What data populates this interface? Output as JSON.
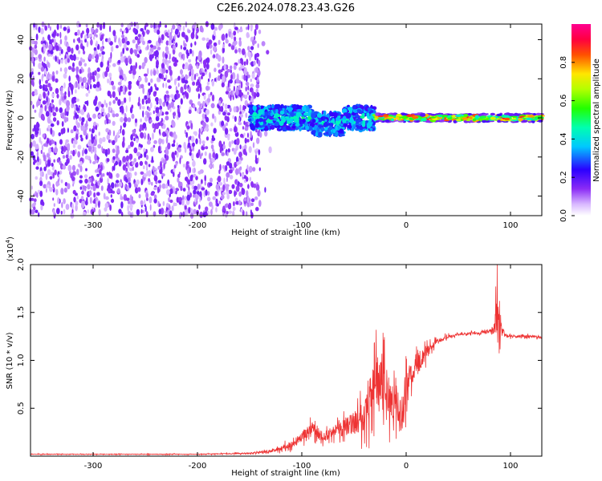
{
  "figure_title": "C2E6.2024.078.23.43.G26",
  "colors": {
    "snr_line": "#ee3333",
    "axis": "#000000"
  },
  "chart_data": [
    {
      "type": "heatmap",
      "title": "C2E6.2024.078.23.43.G26",
      "xlabel": "Height of straight line (km)",
      "ylabel": "Frequency (Hz)",
      "xlim": [
        -360,
        130
      ],
      "ylim": [
        -50,
        48
      ],
      "x_ticks": [
        -300,
        -200,
        -100,
        0,
        100
      ],
      "x_tick_labels": [
        "-300",
        "-200",
        "-100",
        "0",
        "100"
      ],
      "y_ticks": [
        -40,
        -20,
        0,
        20,
        40
      ],
      "y_tick_labels": [
        "-40",
        "-20",
        "0",
        "20",
        "40"
      ],
      "colorbar": {
        "label": "Normalized spectral amplitude",
        "range": [
          0,
          1
        ],
        "ticks": [
          0.0,
          0.2,
          0.4,
          0.6,
          0.8
        ],
        "tick_labels": [
          "0.0",
          "0.2",
          "0.4",
          "0.6",
          "0.8"
        ],
        "colormap": "rainbow (white-lavender-purple-blue-cyan-green-yellow-red-magenta)"
      },
      "regions": [
        {
          "description": "broadband noise",
          "x_range": [
            -360,
            -140
          ],
          "freq_range": [
            -50,
            48
          ],
          "amplitude": 0.15
        },
        {
          "description": "transition band",
          "x_range": [
            -150,
            -30
          ],
          "freq_center": 0,
          "freq_halfwidth": 6,
          "amplitude": 0.35
        },
        {
          "description": "narrow carrier line",
          "x_range": [
            -30,
            130
          ],
          "freq_center": 0,
          "freq_halfwidth": 2,
          "amplitude": 0.85
        }
      ]
    },
    {
      "type": "line",
      "ylabel": "SNR (10 * v/v)",
      "y_multiplier": "(x10^4)",
      "multiplier_base": "(x10",
      "multiplier_exp": "4",
      "multiplier_close": ")",
      "xlabel": "Height of straight line (km)",
      "xlim": [
        -360,
        130
      ],
      "ylim": [
        0,
        2.0
      ],
      "x_ticks": [
        -300,
        -200,
        -100,
        0,
        100
      ],
      "x_tick_labels": [
        "-300",
        "-200",
        "-100",
        "0",
        "100"
      ],
      "y_ticks": [
        0.5,
        1.0,
        1.5,
        2.0
      ],
      "y_tick_labels": [
        "0.5",
        "1.0",
        "1.5",
        "2.0"
      ],
      "series": [
        {
          "x": [
            -360,
            -300,
            -250,
            -200,
            -150,
            -130,
            -120,
            -110,
            -100,
            -95,
            -90,
            -85,
            -80,
            -70,
            -60,
            -50,
            -40,
            -35,
            -30,
            -25,
            -20,
            -15,
            -10,
            -5,
            0,
            5,
            10,
            15,
            20,
            25,
            30,
            40,
            50,
            60,
            70,
            80,
            85,
            88,
            90,
            92,
            95,
            100,
            110,
            120,
            130
          ],
          "y": [
            0.02,
            0.02,
            0.02,
            0.02,
            0.03,
            0.05,
            0.08,
            0.12,
            0.2,
            0.25,
            0.3,
            0.22,
            0.2,
            0.25,
            0.3,
            0.35,
            0.45,
            0.6,
            0.75,
            0.8,
            0.7,
            0.6,
            0.55,
            0.4,
            0.7,
            0.85,
            0.95,
            1.02,
            1.08,
            1.15,
            1.2,
            1.25,
            1.27,
            1.28,
            1.28,
            1.3,
            1.35,
            1.6,
            1.4,
            1.3,
            1.26,
            1.25,
            1.25,
            1.25,
            1.24
          ],
          "noise_amplitude": [
            0.005,
            0.005,
            0.005,
            0.005,
            0.01,
            0.02,
            0.04,
            0.06,
            0.08,
            0.1,
            0.12,
            0.08,
            0.08,
            0.1,
            0.15,
            0.2,
            0.3,
            0.4,
            0.45,
            0.45,
            0.4,
            0.35,
            0.35,
            0.3,
            0.3,
            0.25,
            0.2,
            0.15,
            0.1,
            0.06,
            0.04,
            0.03,
            0.02,
            0.02,
            0.02,
            0.03,
            0.15,
            0.5,
            0.3,
            0.08,
            0.03,
            0.02,
            0.02,
            0.02,
            0.02
          ]
        }
      ]
    }
  ]
}
